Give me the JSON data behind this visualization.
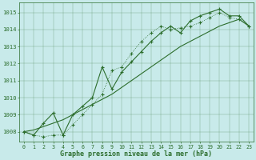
{
  "background_color": "#c8eaea",
  "grid_color": "#2d6e2d",
  "line_color": "#2d6e2d",
  "xlabel": "Graphe pression niveau de la mer (hPa)",
  "xlim": [
    -0.5,
    23.5
  ],
  "ylim": [
    1007.4,
    1015.6
  ],
  "yticks": [
    1008,
    1009,
    1010,
    1011,
    1012,
    1013,
    1014,
    1015
  ],
  "xticks": [
    0,
    1,
    2,
    3,
    4,
    5,
    6,
    7,
    8,
    9,
    10,
    11,
    12,
    13,
    14,
    15,
    16,
    17,
    18,
    19,
    20,
    21,
    22,
    23
  ],
  "series1_x": [
    0,
    1,
    2,
    3,
    4,
    5,
    6,
    7,
    8,
    9,
    10,
    11,
    12,
    13,
    14,
    15,
    16,
    17,
    18,
    19,
    20,
    21,
    22,
    23
  ],
  "series1_y": [
    1008.0,
    1007.8,
    1007.7,
    1007.8,
    1007.8,
    1008.4,
    1009.0,
    1009.6,
    1010.2,
    1011.6,
    1011.8,
    1012.6,
    1013.3,
    1013.8,
    1014.2,
    1014.0,
    1014.1,
    1014.2,
    1014.4,
    1014.7,
    1015.0,
    1014.7,
    1014.6,
    1014.2
  ],
  "series2_x": [
    0,
    1,
    2,
    3,
    4,
    5,
    6,
    7,
    8,
    9,
    10,
    11,
    12,
    13,
    14,
    15,
    16,
    17,
    18,
    19,
    20,
    21,
    22,
    23
  ],
  "series2_y": [
    1008.0,
    1007.8,
    1008.5,
    1009.1,
    1007.8,
    1009.0,
    1009.5,
    1010.0,
    1011.8,
    1010.5,
    1011.5,
    1012.1,
    1012.7,
    1013.3,
    1013.8,
    1014.2,
    1013.8,
    1014.5,
    1014.8,
    1015.0,
    1015.2,
    1014.8,
    1014.8,
    1014.2
  ],
  "series3_x": [
    0,
    1,
    2,
    3,
    4,
    5,
    6,
    7,
    8,
    9,
    10,
    11,
    12,
    13,
    14,
    15,
    16,
    17,
    18,
    19,
    20,
    21,
    22,
    23
  ],
  "series3_y": [
    1008.0,
    1008.1,
    1008.3,
    1008.5,
    1008.7,
    1009.0,
    1009.3,
    1009.6,
    1009.9,
    1010.2,
    1010.6,
    1011.0,
    1011.4,
    1011.8,
    1012.2,
    1012.6,
    1013.0,
    1013.3,
    1013.6,
    1013.9,
    1014.2,
    1014.4,
    1014.6,
    1014.2
  ]
}
